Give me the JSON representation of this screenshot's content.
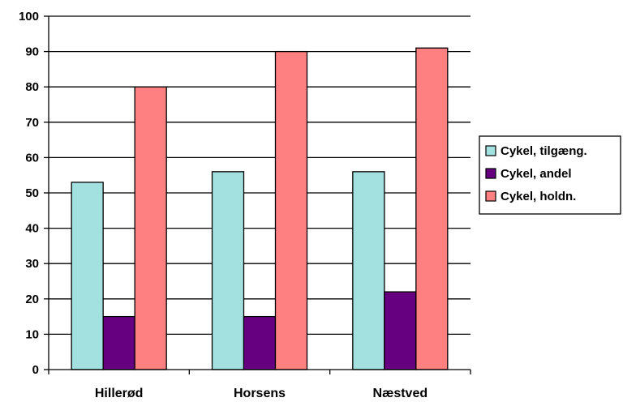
{
  "chart_data": {
    "type": "bar",
    "categories": [
      "Hillerød",
      "Horsens",
      "Næstved"
    ],
    "series": [
      {
        "name": "Cykel, tilgæng.",
        "values": [
          53,
          56,
          56
        ],
        "color": "#a3e0e0"
      },
      {
        "name": "Cykel, andel",
        "values": [
          15,
          15,
          22
        ],
        "color": "#660080"
      },
      {
        "name": "Cykel, holdn.",
        "values": [
          80,
          90,
          91
        ],
        "color": "#ff8080"
      }
    ],
    "ylim": [
      0,
      100
    ],
    "yticks": [
      0,
      10,
      20,
      30,
      40,
      50,
      60,
      70,
      80,
      90,
      100
    ],
    "grid": true,
    "legend_position": "right"
  }
}
